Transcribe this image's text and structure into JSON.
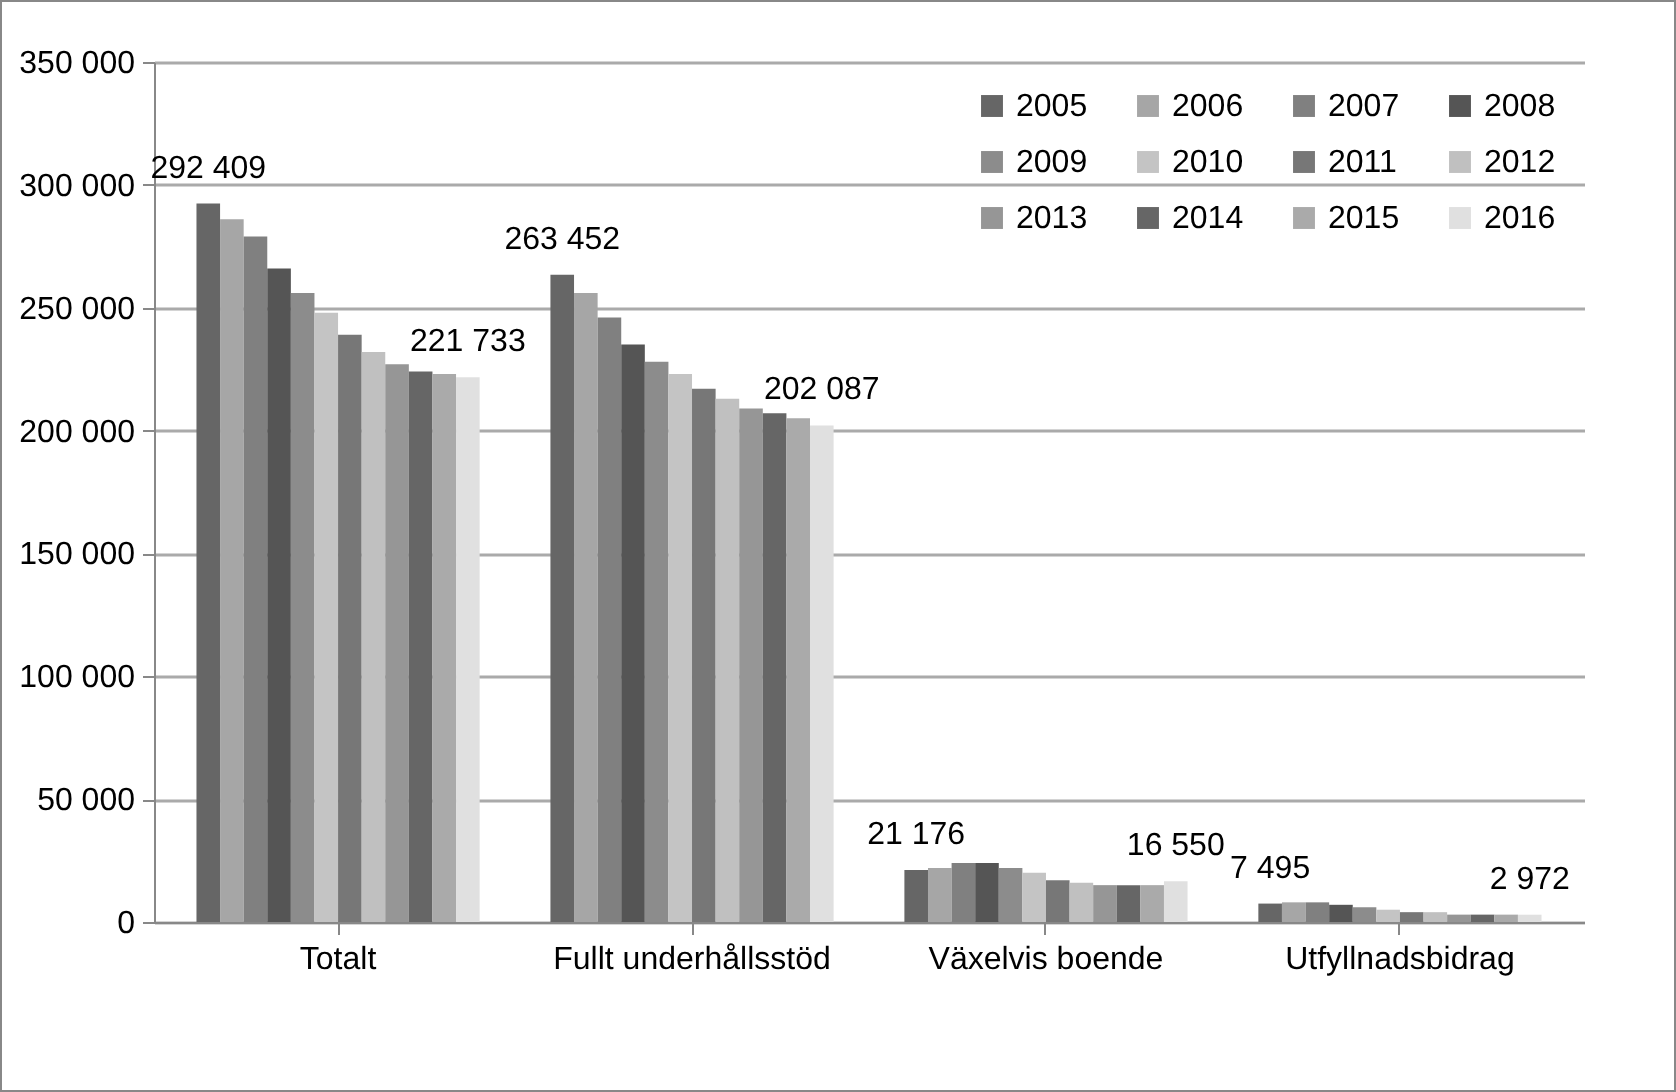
{
  "chart_data": {
    "type": "bar",
    "categories": [
      "Totalt",
      "Fullt underhållsstöd",
      "Växelvis boende",
      "Utfyllnadsbidrag"
    ],
    "ylim": [
      0,
      350000
    ],
    "yticks": [
      {
        "value": 0,
        "label": "0"
      },
      {
        "value": 50000,
        "label": "50 000"
      },
      {
        "value": 100000,
        "label": "100 000"
      },
      {
        "value": 150000,
        "label": "150 000"
      },
      {
        "value": 200000,
        "label": "200 000"
      },
      {
        "value": 250000,
        "label": "250 000"
      },
      {
        "value": 300000,
        "label": "300 000"
      },
      {
        "value": 350000,
        "label": "350 000"
      }
    ],
    "grid": "y",
    "legend": "top right",
    "series": [
      {
        "name": "2005",
        "color": "#666666",
        "values": [
          292409,
          263452,
          21176,
          7495
        ],
        "value_labels": [
          "292 409",
          "263 452",
          "21 176",
          "7 495"
        ]
      },
      {
        "name": "2006",
        "color": "#a6a6a6",
        "values": [
          286000,
          256000,
          22000,
          8000
        ]
      },
      {
        "name": "2007",
        "color": "#808080",
        "values": [
          279000,
          246000,
          24000,
          8000
        ]
      },
      {
        "name": "2008",
        "color": "#555555",
        "values": [
          266000,
          235000,
          24000,
          7000
        ]
      },
      {
        "name": "2009",
        "color": "#8c8c8c",
        "values": [
          256000,
          228000,
          22000,
          6000
        ]
      },
      {
        "name": "2010",
        "color": "#c4c4c4",
        "values": [
          248000,
          223000,
          20000,
          5000
        ]
      },
      {
        "name": "2011",
        "color": "#777777",
        "values": [
          239000,
          217000,
          17000,
          4000
        ]
      },
      {
        "name": "2012",
        "color": "#c0c0c0",
        "values": [
          232000,
          213000,
          16000,
          4000
        ]
      },
      {
        "name": "2013",
        "color": "#969696",
        "values": [
          227000,
          209000,
          15000,
          3000
        ]
      },
      {
        "name": "2014",
        "color": "#666666",
        "values": [
          224000,
          207000,
          15000,
          3000
        ]
      },
      {
        "name": "2015",
        "color": "#aaaaaa",
        "values": [
          223000,
          205000,
          15000,
          3000
        ]
      },
      {
        "name": "2016",
        "color": "#e0e0e0",
        "values": [
          221733,
          202087,
          16550,
          2972
        ],
        "value_labels": [
          "221 733",
          "202 087",
          "16 550",
          "2 972"
        ]
      }
    ]
  }
}
